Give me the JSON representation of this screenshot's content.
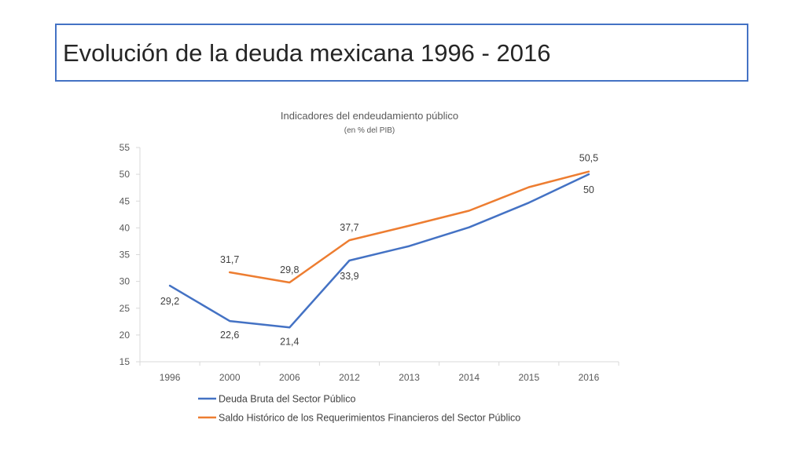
{
  "slide": {
    "title": "Evolución de la deuda mexicana 1996 - 2016"
  },
  "colors": {
    "border": "#4472c4",
    "series1": "#4472c4",
    "series2": "#ed7d31"
  },
  "chart_data": {
    "type": "line",
    "title": "Indicadores del endeudamiento público",
    "subtitle": "(en % del PIB)",
    "xlabel": "",
    "ylabel": "",
    "categories": [
      "1996",
      "2000",
      "2006",
      "2012",
      "2013",
      "2014",
      "2015",
      "2016"
    ],
    "ylim": [
      15,
      55
    ],
    "yticks": [
      "15",
      "20",
      "25",
      "30",
      "35",
      "40",
      "45",
      "50",
      "55"
    ],
    "grid": false,
    "legend_position": "bottom",
    "series": [
      {
        "name": "Deuda Bruta del Sector Público",
        "color": "#4472c4",
        "values": [
          29.2,
          22.6,
          21.4,
          33.9,
          36.6,
          40.1,
          44.7,
          50.0
        ],
        "labels": [
          "29,2",
          "22,6",
          "21,4",
          "33,9",
          null,
          null,
          null,
          "50"
        ]
      },
      {
        "name": "Saldo Histórico de los Requerimientos Financieros del Sector Público",
        "color": "#ed7d31",
        "values": [
          null,
          31.7,
          29.8,
          37.7,
          40.4,
          43.2,
          47.6,
          50.5
        ],
        "labels": [
          null,
          "31,7",
          "29,8",
          "37,7",
          null,
          null,
          null,
          "50,5"
        ]
      }
    ]
  }
}
